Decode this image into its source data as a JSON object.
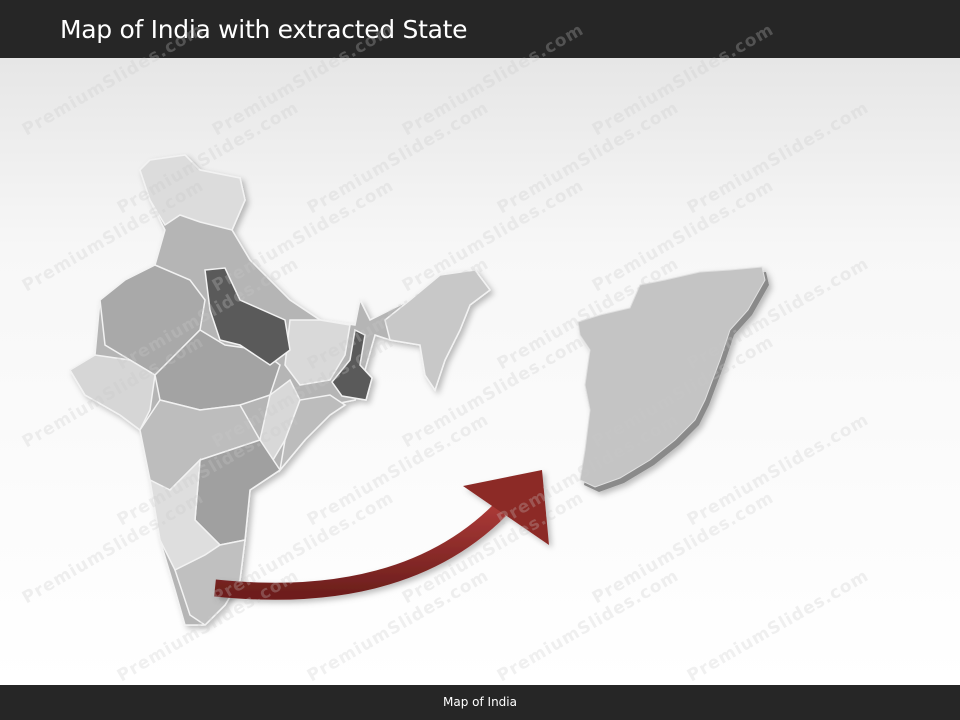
{
  "header": {
    "title": "Map of India with extracted State"
  },
  "footer": {
    "label": "Map of India"
  },
  "watermark": "PremiumSlides.com",
  "map": {
    "country": "India",
    "highlighted_states": [
      "Uttar Pradesh",
      "West Bengal"
    ],
    "extracted_state": "Tamil Nadu",
    "colors": {
      "base": "#b8b8b8",
      "light": "#dcdcdc",
      "mid": "#a3a3a3",
      "dark": "#5a5a5a",
      "extracted": "#c4c4c4",
      "arrow": "#8c2a28"
    }
  }
}
